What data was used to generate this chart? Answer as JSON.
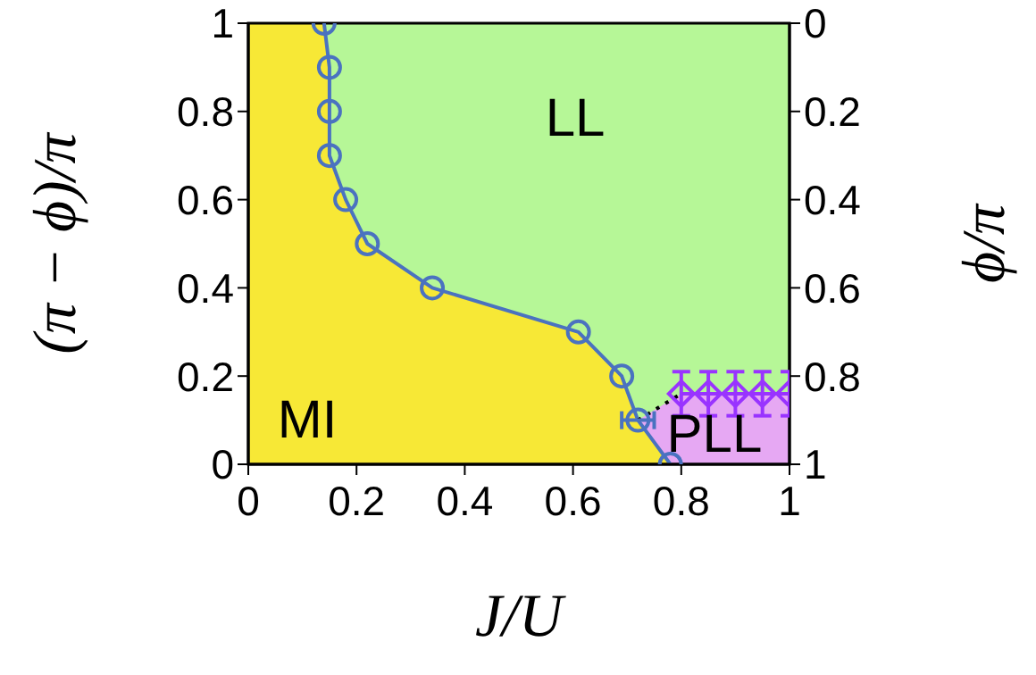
{
  "chart_data": {
    "type": "line",
    "xlabel": "J/U",
    "ylabel": "(π − ϕ)/π",
    "y2label": "ϕ/π",
    "xlim": [
      0,
      1
    ],
    "xticks": [
      0,
      0.2,
      0.4,
      0.6,
      0.8,
      1
    ],
    "ylim": [
      0,
      1
    ],
    "yticks": [
      0,
      0.2,
      0.4,
      0.6,
      0.8,
      1
    ],
    "y2lim": [
      1,
      0
    ],
    "y2ticks": [
      0,
      0.2,
      0.4,
      0.6,
      0.8,
      1
    ],
    "grid": false,
    "series": [
      {
        "color": "#4a72c0",
        "marker": "circle",
        "x": [
          0.14,
          0.15,
          0.15,
          0.15,
          0.18,
          0.22,
          0.34,
          0.61,
          0.69,
          0.72,
          0.78
        ],
        "values": [
          1,
          0.9,
          0.8,
          0.7,
          0.6,
          0.5,
          0.4,
          0.3,
          0.2,
          0.1,
          0
        ],
        "xerrors": [
          null,
          null,
          null,
          null,
          null,
          null,
          null,
          null,
          null,
          0.03,
          null
        ]
      },
      {
        "color": "#9933ff",
        "marker": "diamond",
        "x": [
          0.8,
          0.85,
          0.9,
          0.95,
          1
        ],
        "values": [
          0.16,
          0.16,
          0.16,
          0.16,
          0.16
        ],
        "errors": [
          0.05,
          0.05,
          0.05,
          0.05,
          0.05
        ]
      },
      {
        "color": "#000000",
        "line_style": "dotted",
        "x": [
          0.72,
          0.8
        ],
        "values": [
          0.1,
          0.16
        ]
      }
    ],
    "annotations": [
      "LL",
      "MI",
      "PLL"
    ]
  }
}
